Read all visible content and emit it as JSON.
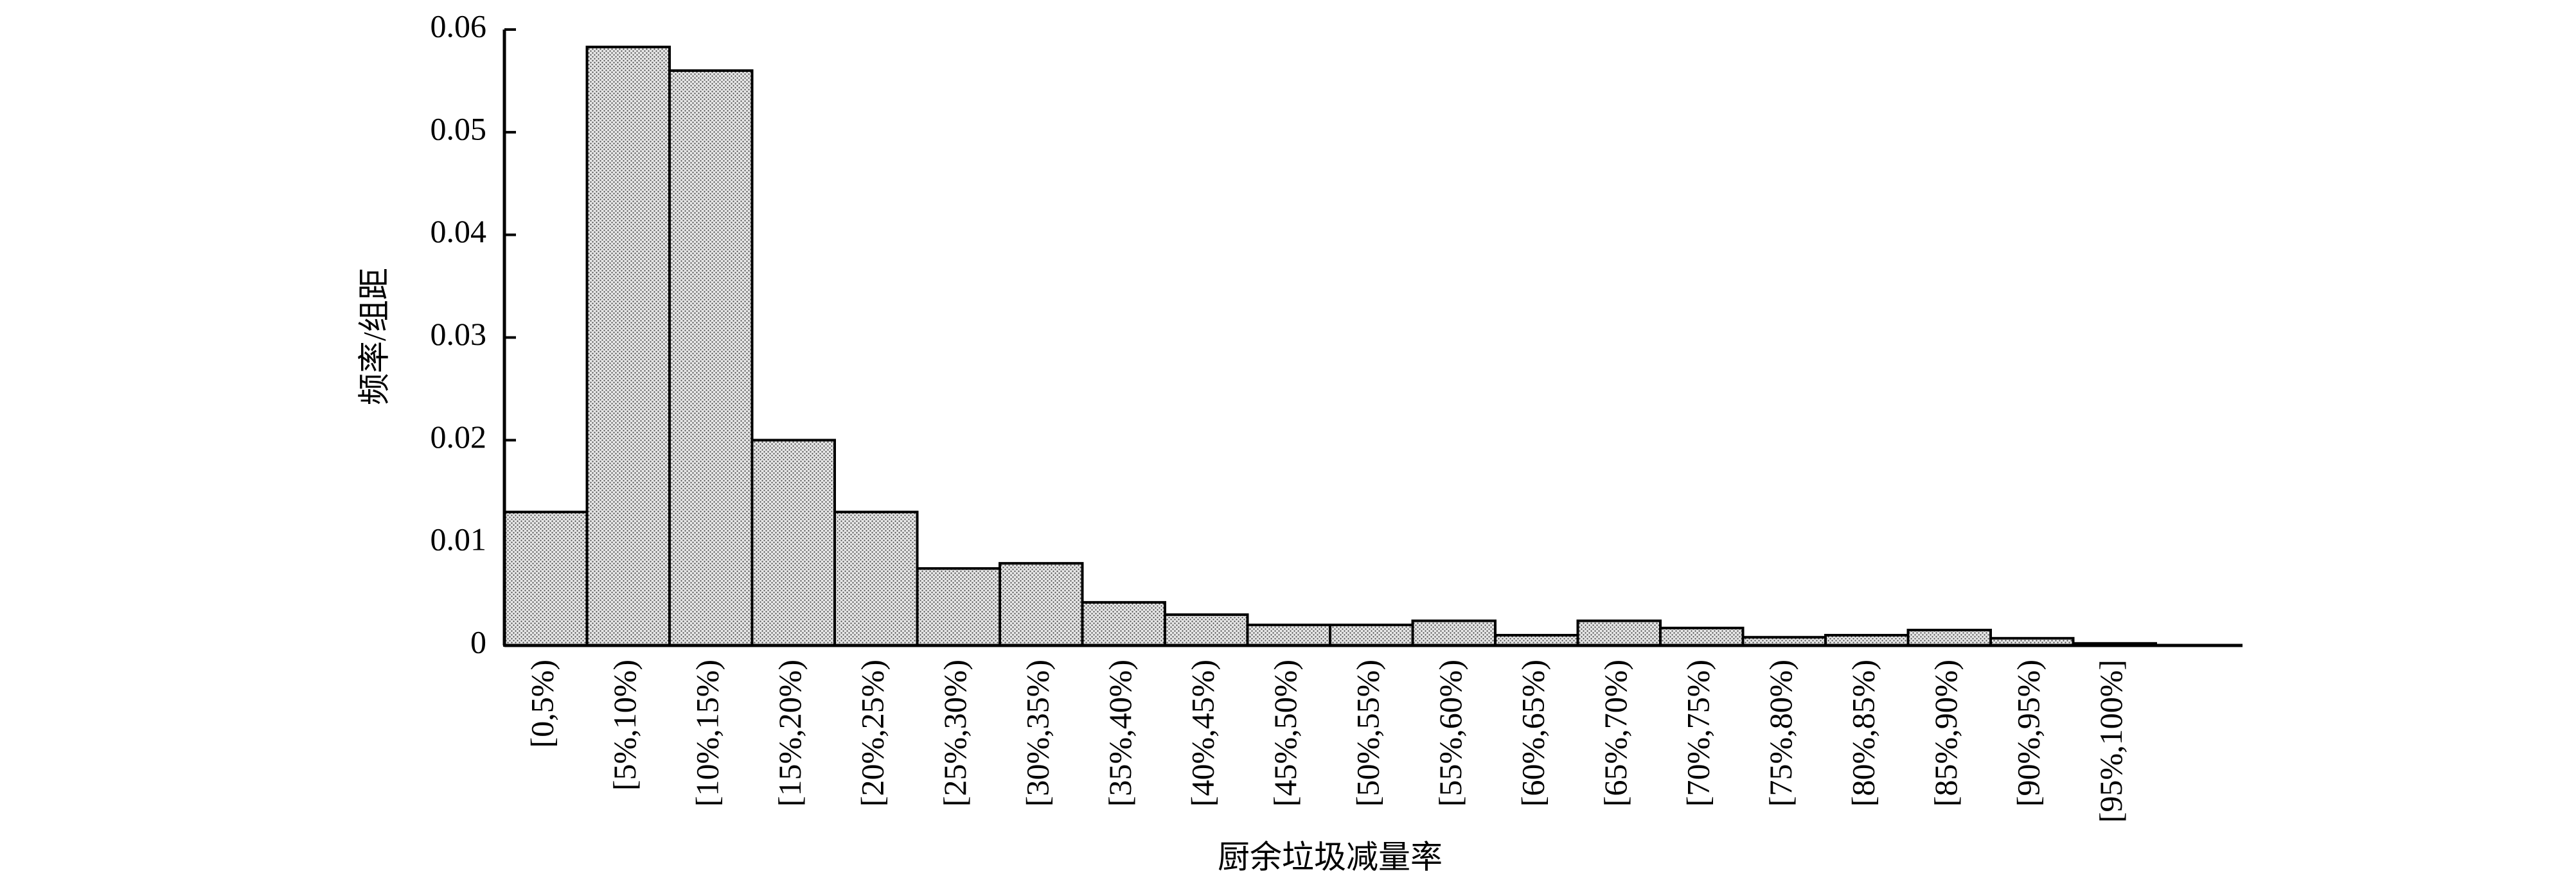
{
  "chart_data": {
    "type": "bar",
    "x_label": "厨余垃圾减量率",
    "y_label": "频率/组距",
    "categories": [
      "[0,5%)",
      "[5%,10%)",
      "[10%,15%)",
      "[15%,20%)",
      "[20%,25%)",
      "[25%,30%)",
      "[30%,35%)",
      "[35%,40%)",
      "[40%,45%)",
      "[45%,50%)",
      "[50%,55%)",
      "[55%,60%)",
      "[60%,65%)",
      "[65%,70%)",
      "[70%,75%)",
      "[75%,80%)",
      "[80%,85%)",
      "[85%,90%)",
      "[90%,95%)",
      "[95%,100%]"
    ],
    "values": [
      0.013,
      0.0583,
      0.056,
      0.02,
      0.013,
      0.0075,
      0.008,
      0.0042,
      0.003,
      0.002,
      0.002,
      0.0024,
      0.001,
      0.0024,
      0.0017,
      0.0008,
      0.001,
      0.0015,
      0.0007,
      0.0002
    ],
    "color": "#e6e6e6",
    "ylim": [
      0,
      0.06
    ],
    "yticks": [
      0,
      0.01,
      0.02,
      0.03,
      0.04,
      0.05,
      0.06
    ]
  }
}
